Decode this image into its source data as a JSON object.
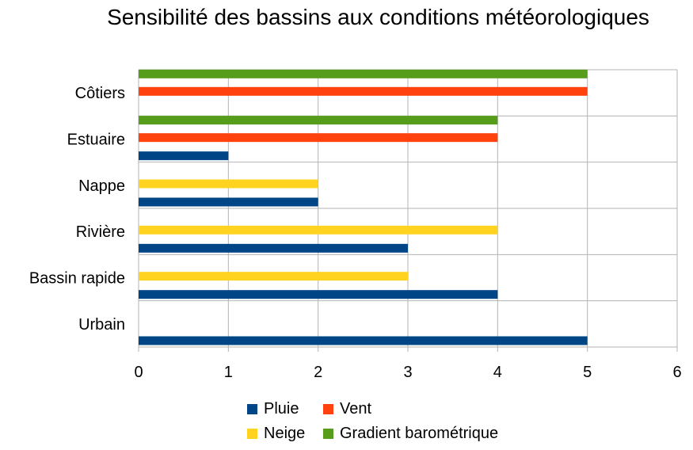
{
  "chart_data": {
    "type": "bar",
    "orientation": "horizontal",
    "title": "Sensibilité des bassins aux conditions météorologiques",
    "xlabel": "",
    "ylabel": "",
    "xlim": [
      0,
      6
    ],
    "x_ticks": [
      "0",
      "1",
      "2",
      "3",
      "4",
      "5",
      "6"
    ],
    "grid": true,
    "legend_position": "bottom",
    "categories": [
      "Urbain",
      "Bassin rapide",
      "Rivière",
      "Nappe",
      "Estuaire",
      "Côtiers"
    ],
    "series": [
      {
        "name": "Pluie",
        "color": "#004586",
        "values": [
          5,
          4,
          3,
          2,
          1,
          null
        ]
      },
      {
        "name": "Neige",
        "color": "#ffd320",
        "values": [
          null,
          3,
          4,
          2,
          null,
          null
        ]
      },
      {
        "name": "Vent",
        "color": "#ff420e",
        "values": [
          null,
          null,
          null,
          null,
          4,
          5
        ]
      },
      {
        "name": "Gradient barométrique",
        "color": "#579d1c",
        "values": [
          null,
          null,
          null,
          null,
          4,
          5
        ]
      }
    ]
  }
}
